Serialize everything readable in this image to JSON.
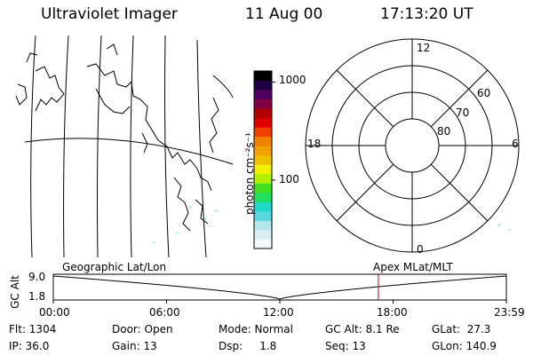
{
  "header": {
    "title": "Ultraviolet Imager",
    "date": "11 Aug 00",
    "time": "17:13:20 UT"
  },
  "colorbar": {
    "unit_label": "photon cm⁻²s⁻¹",
    "ticks": [
      {
        "label": "1000",
        "value": 1000
      },
      {
        "label": "100",
        "value": 100
      }
    ],
    "min": 20,
    "max": 1300,
    "colors": [
      "#f2f8f8",
      "#d8eef0",
      "#b4e6ea",
      "#58d8dc",
      "#20d8c8",
      "#20e060",
      "#40e020",
      "#b0f000",
      "#f0f000",
      "#f0c000",
      "#f0a000",
      "#f08000",
      "#f04000",
      "#e00000",
      "#b00000",
      "#800040",
      "#500060",
      "#200040",
      "#000000"
    ]
  },
  "polar_plot": {
    "mlt_labels": [
      "12",
      "18",
      "6",
      "0"
    ],
    "lat_labels": [
      "60",
      "70",
      "80"
    ]
  },
  "coordinate_labels": {
    "left": "Geographic Lat/Lon",
    "right": "Apex MLat/MLT"
  },
  "timeline": {
    "ylabel": "GC Alt",
    "y_ticks": [
      "9.0",
      "1.8"
    ],
    "x_ticks": [
      "00:00",
      "06:00",
      "12:00",
      "18:00",
      "23:59"
    ],
    "current_time_hours": 17.22,
    "line_color": "#cc0000"
  },
  "info": {
    "row1": {
      "flt": "Flt: 1304",
      "door": "Door: Open",
      "mode": "Mode: Normal",
      "gcalt": "GC Alt: 8.1 Re",
      "glat": "GLat:  27.3"
    },
    "row2": {
      "ip": "IP: 36.0",
      "gain": "Gain: 13",
      "dsp": "Dsp:     1.8",
      "seq": "Seq: 13",
      "glon": "GLon: 140.9"
    }
  }
}
